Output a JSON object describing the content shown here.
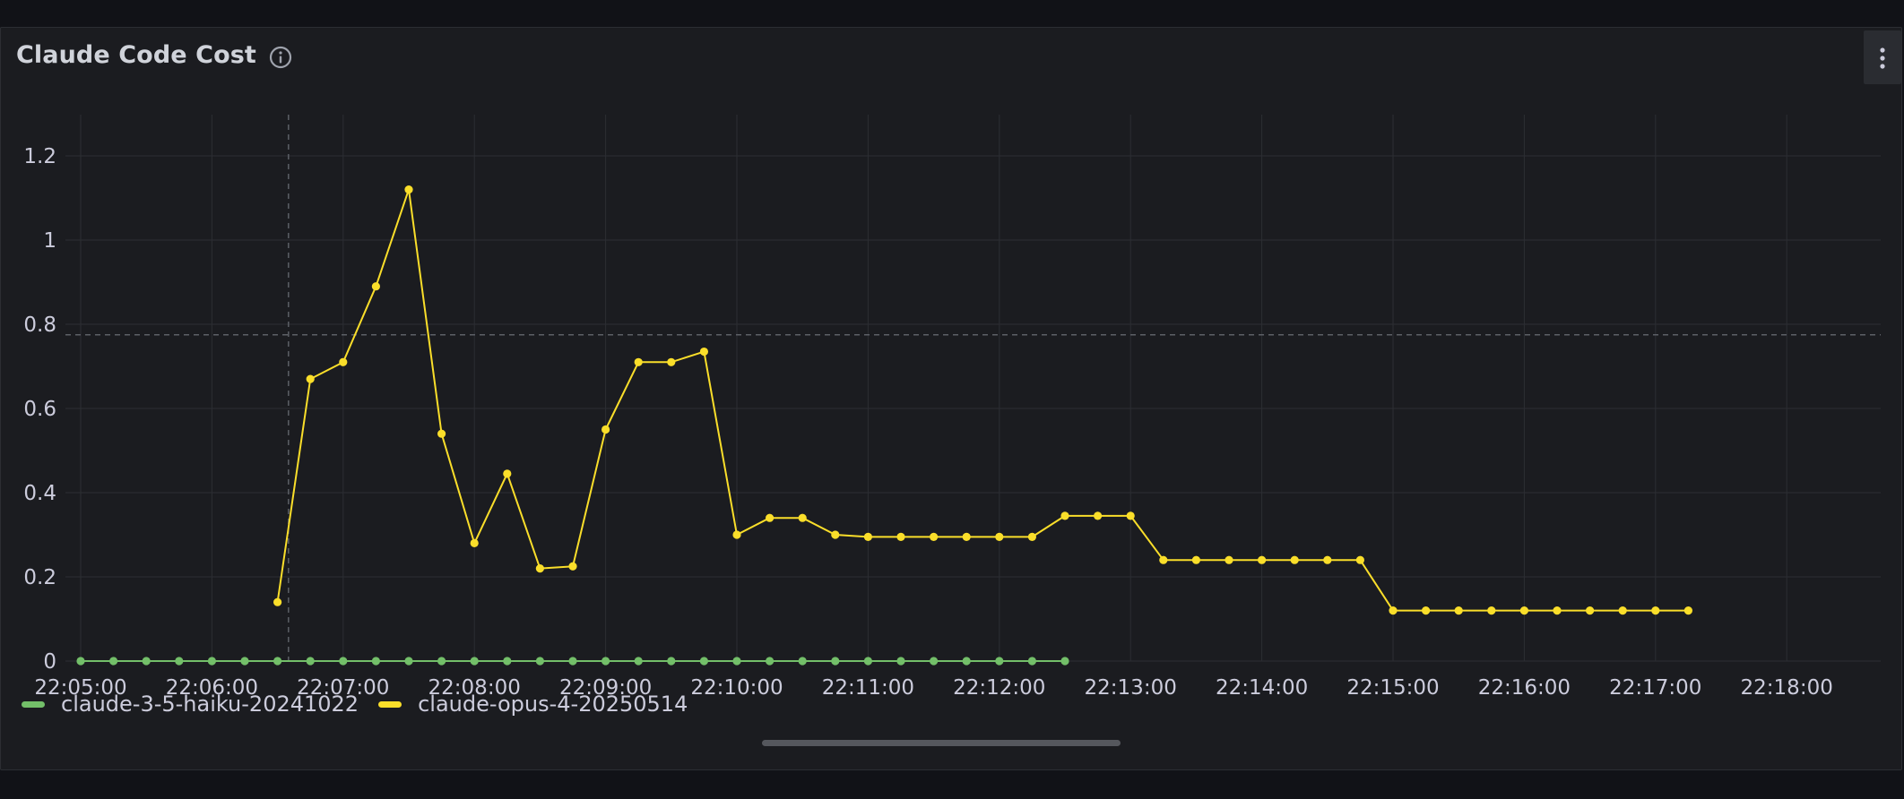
{
  "panel": {
    "title": "Claude Code Cost",
    "icons": {
      "info": "info-icon",
      "menu": "kebab-menu-icon"
    }
  },
  "colors": {
    "haiku": "#73bf69",
    "opus": "#fade2a",
    "grid": "#2c2e33",
    "crosshair": "#5c5f66",
    "text": "#ccccdc",
    "background": "#1b1c20"
  },
  "chart_data": {
    "type": "line",
    "title": "Claude Code Cost",
    "xlabel": "",
    "ylabel": "",
    "x_tick_labels": [
      "22:05:00",
      "22:06:00",
      "22:07:00",
      "22:08:00",
      "22:09:00",
      "22:10:00",
      "22:11:00",
      "22:12:00",
      "22:13:00",
      "22:14:00",
      "22:15:00",
      "22:16:00",
      "22:17:00",
      "22:18:00"
    ],
    "y_tick_labels": [
      "0",
      "0.2",
      "0.4",
      "0.6",
      "0.8",
      "1",
      "1.2"
    ],
    "ylim": [
      0,
      1.3
    ],
    "xlim_seconds": [
      "22:05:00",
      "22:18:40"
    ],
    "grid": true,
    "legend_position": "bottom-left",
    "crosshair": {
      "x": "22:06:35",
      "y": 0.775
    },
    "series": [
      {
        "name": "claude-3-5-haiku-20241022",
        "color": "#73bf69",
        "x": [
          "22:05:00",
          "22:05:15",
          "22:05:30",
          "22:05:45",
          "22:06:00",
          "22:06:15",
          "22:06:30",
          "22:06:45",
          "22:07:00",
          "22:07:15",
          "22:07:30",
          "22:07:45",
          "22:08:00",
          "22:08:15",
          "22:08:30",
          "22:08:45",
          "22:09:00",
          "22:09:15",
          "22:09:30",
          "22:09:45",
          "22:10:00",
          "22:10:15",
          "22:10:30",
          "22:10:45",
          "22:11:00",
          "22:11:15",
          "22:11:30",
          "22:11:45",
          "22:12:00",
          "22:12:15",
          "22:12:30"
        ],
        "values": [
          0,
          0,
          0,
          0,
          0,
          0,
          0,
          0,
          0,
          0,
          0,
          0,
          0,
          0,
          0,
          0,
          0,
          0,
          0,
          0,
          0,
          0,
          0,
          0,
          0,
          0,
          0,
          0,
          0,
          0,
          0
        ]
      },
      {
        "name": "claude-opus-4-20250514",
        "color": "#fade2a",
        "x": [
          "22:06:30",
          "22:06:45",
          "22:07:00",
          "22:07:15",
          "22:07:30",
          "22:07:45",
          "22:08:00",
          "22:08:15",
          "22:08:30",
          "22:08:45",
          "22:09:00",
          "22:09:15",
          "22:09:30",
          "22:09:45",
          "22:10:00",
          "22:10:15",
          "22:10:30",
          "22:10:45",
          "22:11:00",
          "22:11:15",
          "22:11:30",
          "22:11:45",
          "22:12:00",
          "22:12:15",
          "22:12:30",
          "22:12:45",
          "22:13:00",
          "22:13:15",
          "22:13:30",
          "22:13:45",
          "22:14:00",
          "22:14:15",
          "22:14:30",
          "22:14:45",
          "22:15:00",
          "22:15:15",
          "22:15:30",
          "22:15:45",
          "22:16:00",
          "22:16:15",
          "22:16:30",
          "22:16:45",
          "22:17:00",
          "22:17:15"
        ],
        "values": [
          0.14,
          0.67,
          0.71,
          0.89,
          1.12,
          0.54,
          0.28,
          0.445,
          0.22,
          0.225,
          0.55,
          0.71,
          0.71,
          0.735,
          0.3,
          0.34,
          0.34,
          0.3,
          0.295,
          0.295,
          0.295,
          0.295,
          0.295,
          0.295,
          0.345,
          0.345,
          0.345,
          0.24,
          0.24,
          0.24,
          0.24,
          0.24,
          0.24,
          0.24,
          0.12,
          0.12,
          0.12,
          0.12,
          0.12,
          0.12,
          0.12,
          0.12,
          0.12,
          0.12
        ]
      }
    ]
  }
}
